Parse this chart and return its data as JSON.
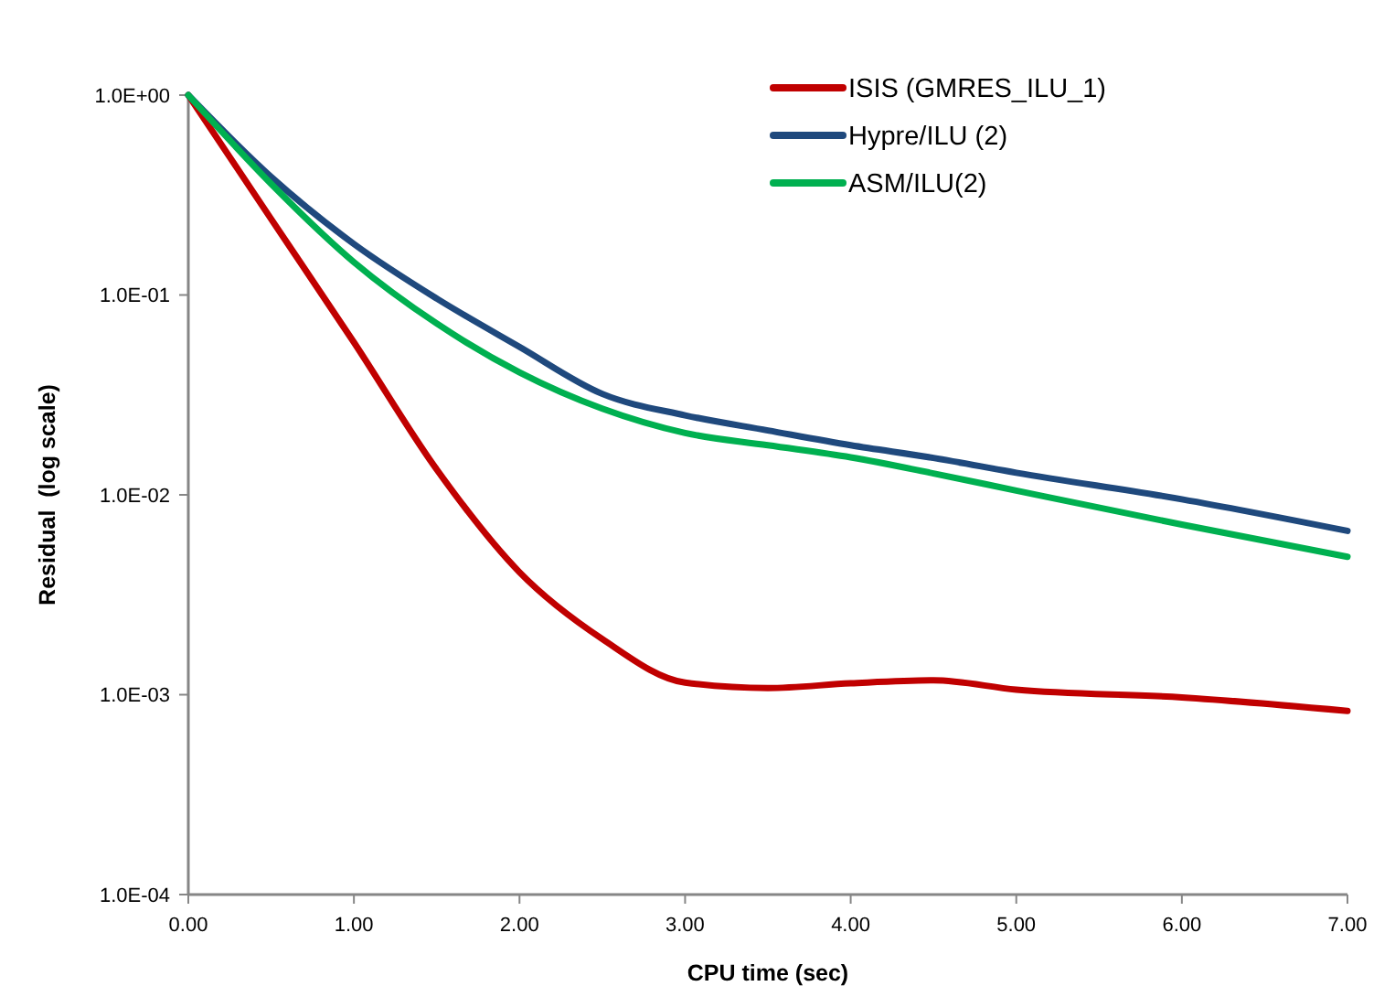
{
  "chart_data": {
    "type": "line",
    "xlabel": "CPU time (sec)",
    "ylabel": "Residual  (log scale)",
    "log": "y",
    "grid": false,
    "legend": "top right",
    "marker": "none",
    "line_style": "solid",
    "x": [
      0,
      0.5,
      1,
      1.5,
      2,
      2.5,
      3,
      3.5,
      4,
      4.5,
      5,
      6,
      7
    ],
    "xlim": [
      0,
      7
    ],
    "xticks": [
      {
        "value": 0,
        "label": "0.00"
      },
      {
        "value": 1,
        "label": "1.00"
      },
      {
        "value": 2,
        "label": "2.00"
      },
      {
        "value": 3,
        "label": "3.00"
      },
      {
        "value": 4,
        "label": "4.00"
      },
      {
        "value": 5,
        "label": "5.00"
      },
      {
        "value": 6,
        "label": "6.00"
      },
      {
        "value": 7,
        "label": "7.00"
      }
    ],
    "ylim": [
      0.0001,
      1
    ],
    "yticks": [
      {
        "value": 0.0001,
        "label": "1.0E-04"
      },
      {
        "value": 0.001,
        "label": "1.0E-03"
      },
      {
        "value": 0.01,
        "label": "1.0E-02"
      },
      {
        "value": 0.1,
        "label": "1.0E-01"
      },
      {
        "value": 1,
        "label": "1.0E+00"
      }
    ],
    "series": [
      {
        "name": "ISIS (GMRES_ILU_1)",
        "color": "#c00000",
        "values": [
          1,
          0.24,
          0.058,
          0.0134,
          0.0041,
          0.0019,
          0.00115,
          0.00108,
          0.00114,
          0.00118,
          0.00106,
          0.00097,
          0.00083
        ]
      },
      {
        "name": "Hypre/ILU (2)",
        "color": "#1f497d",
        "values": [
          1,
          0.39,
          0.18,
          0.096,
          0.055,
          0.032,
          0.025,
          0.021,
          0.0177,
          0.0153,
          0.0129,
          0.0095,
          0.0066
        ]
      },
      {
        "name": "ASM/ILU(2)",
        "color": "#00b050",
        "values": [
          1,
          0.36,
          0.146,
          0.072,
          0.041,
          0.027,
          0.0204,
          0.0177,
          0.0154,
          0.0128,
          0.0105,
          0.0071,
          0.0049
        ]
      }
    ]
  }
}
